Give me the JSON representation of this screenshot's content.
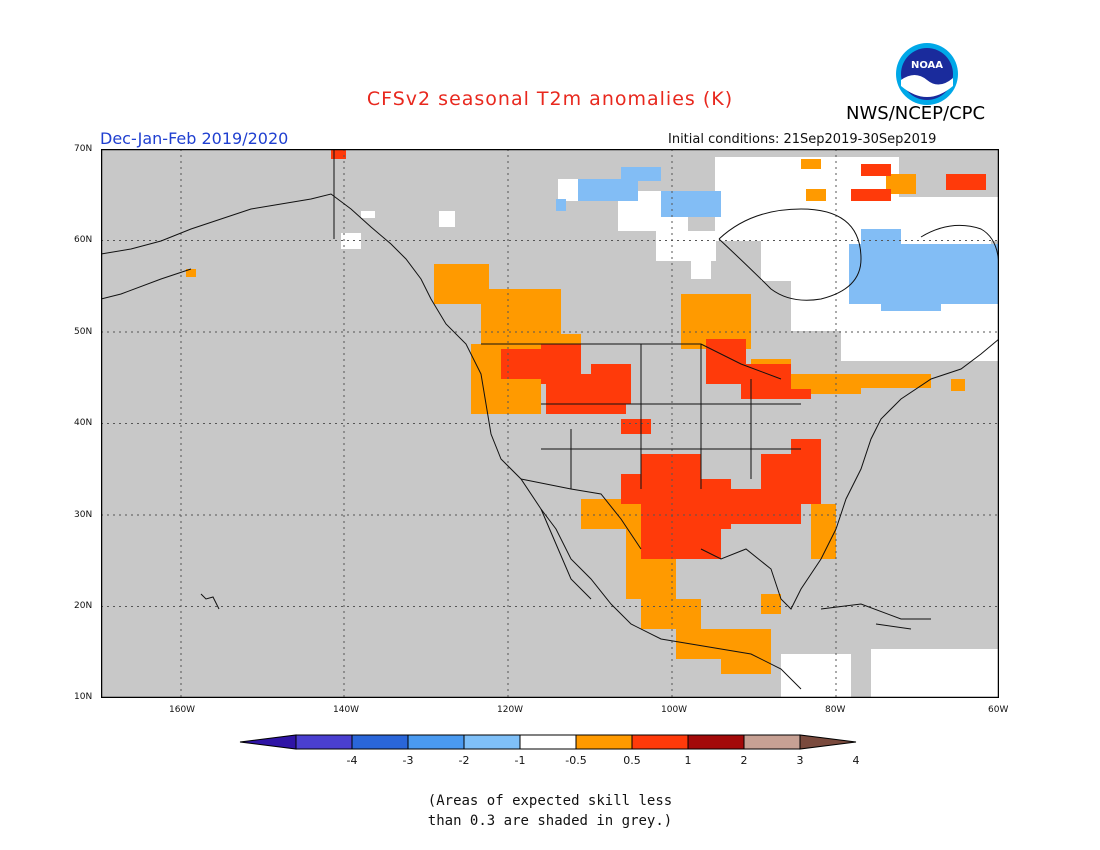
{
  "header": {
    "title": "CFSv2 seasonal T2m anomalies (K)",
    "org": "NWS/NCEP/CPC",
    "logo_text": "NOAA",
    "season": "Dec-Jan-Feb 2019/2020",
    "initial_conditions": "Initial conditions: 21Sep2019-30Sep2019"
  },
  "axes": {
    "lat_labels": [
      "70N",
      "60N",
      "50N",
      "40N",
      "30N",
      "20N",
      "10N"
    ],
    "lon_labels": [
      "160W",
      "140W",
      "120W",
      "100W",
      "80W",
      "60W"
    ]
  },
  "colorbar": {
    "labels": [
      "-4",
      "-3",
      "-2",
      "-1",
      "-0.5",
      "0.5",
      "1",
      "2",
      "3",
      "4"
    ],
    "colors": [
      "#2f14a6",
      "#4a3fd0",
      "#2a66d9",
      "#4a9af0",
      "#7fc0f8",
      "#ffffff",
      "#ff9a00",
      "#ff3a0a",
      "#a30a0a",
      "#c7a194",
      "#7a4a3d"
    ]
  },
  "map_colors": {
    "grey": "#c8c8c8",
    "white": "#ffffff",
    "light_blue": "#82bdf5",
    "orange": "#ff9a00",
    "red": "#ff3a0a"
  },
  "note": {
    "line1": "(Areas of expected skill less",
    "line2": "than 0.3 are shaded in grey.)"
  }
}
